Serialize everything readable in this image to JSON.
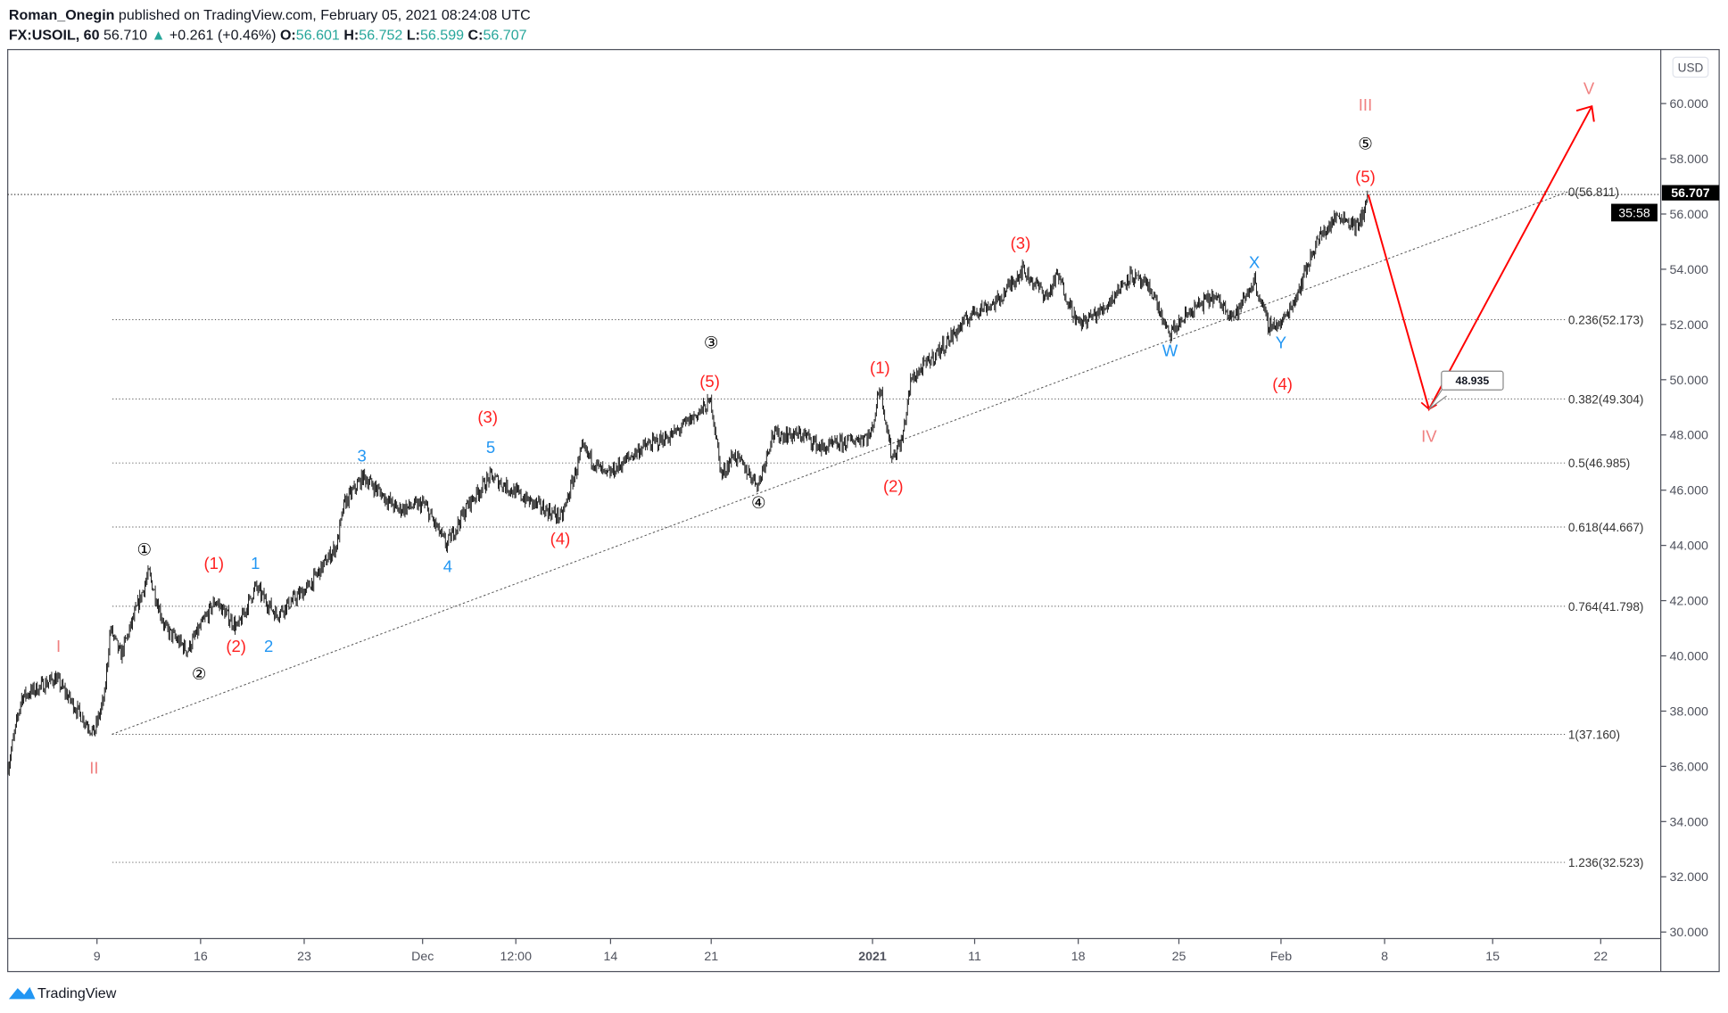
{
  "header": {
    "author": "Roman_Onegin",
    "published": " published on TradingView.com, February 05, 2021 08:24:08 UTC",
    "symbol": "FX:USOIL, 60",
    "last": "56.710",
    "change": "+0.261 (+0.46%)",
    "o_label": "O:",
    "o": "56.601",
    "h_label": "H:",
    "h": "56.752",
    "l_label": "L:",
    "l": "56.599",
    "c_label": "C:",
    "c": "56.707"
  },
  "currency": "USD",
  "price_tag": "56.707",
  "countdown": "35:58",
  "target_tag": "48.935",
  "footer_logo": "TradingView",
  "colors": {
    "up": "#26a69a",
    "wave_primary": "#f08080",
    "wave_red": "#ff2020",
    "wave_blue": "#2196f3",
    "arrow": "#ff0000"
  },
  "chart_data": {
    "type": "candlestick",
    "symbol": "FX:USOIL",
    "interval": "60",
    "ylim": [
      30,
      60.5
    ],
    "y_ticks": [
      "30.000",
      "32.000",
      "34.000",
      "36.000",
      "38.000",
      "40.000",
      "42.000",
      "44.000",
      "46.000",
      "48.000",
      "50.000",
      "52.000",
      "54.000",
      "56.000",
      "58.000",
      "60.000"
    ],
    "x_ticks": [
      {
        "label": "9",
        "day": 0
      },
      {
        "label": "16",
        "day": 7
      },
      {
        "label": "23",
        "day": 14
      },
      {
        "label": "Dec",
        "day": 22
      },
      {
        "label": "12:00",
        "day": 28.3
      },
      {
        "label": "14",
        "day": 34.7
      },
      {
        "label": "21",
        "day": 41.5
      },
      {
        "label": "2021",
        "day": 52.4,
        "bold": true
      },
      {
        "label": "11",
        "day": 59.3
      },
      {
        "label": "18",
        "day": 66.3
      },
      {
        "label": "25",
        "day": 73.1
      },
      {
        "label": "Feb",
        "day": 80
      },
      {
        "label": "8",
        "day": 87
      },
      {
        "label": "15",
        "day": 94.3
      },
      {
        "label": "22",
        "day": 101.6
      }
    ],
    "price_path": [
      [
        -6,
        36
      ],
      [
        -5.1,
        38.5
      ],
      [
        -2.8,
        39.2
      ],
      [
        -1.3,
        38
      ],
      [
        -0.2,
        37.2
      ],
      [
        0.5,
        38.5
      ],
      [
        0.9,
        41
      ],
      [
        1.6,
        40
      ],
      [
        3.5,
        43
      ],
      [
        4.6,
        41
      ],
      [
        6.1,
        40.2
      ],
      [
        8,
        42
      ],
      [
        9.5,
        41
      ],
      [
        10.7,
        42.5
      ],
      [
        12.1,
        41.5
      ],
      [
        14.3,
        42.5
      ],
      [
        16.2,
        44
      ],
      [
        16.7,
        45.5
      ],
      [
        18,
        46.5
      ],
      [
        20.3,
        45.3
      ],
      [
        22.1,
        45.5
      ],
      [
        23.6,
        44
      ],
      [
        25.1,
        45.5
      ],
      [
        26.6,
        46.5
      ],
      [
        29.2,
        45.6
      ],
      [
        31.4,
        45
      ],
      [
        32.8,
        47.5
      ],
      [
        34.4,
        46.5
      ],
      [
        36.7,
        47.5
      ],
      [
        38.9,
        48
      ],
      [
        41.5,
        49.2
      ],
      [
        42.2,
        46.5
      ],
      [
        43,
        47.3
      ],
      [
        44.7,
        46.2
      ],
      [
        45.6,
        48
      ],
      [
        47.8,
        48
      ],
      [
        49,
        47.5
      ],
      [
        52.3,
        48
      ],
      [
        52.9,
        49.8
      ],
      [
        53.7,
        47.2
      ],
      [
        54.4,
        47.8
      ],
      [
        55,
        50
      ],
      [
        56.8,
        51
      ],
      [
        59.3,
        52.5
      ],
      [
        60.8,
        52.8
      ],
      [
        62.5,
        54
      ],
      [
        64.2,
        53
      ],
      [
        64.9,
        53.8
      ],
      [
        66.3,
        52
      ],
      [
        67.9,
        52.5
      ],
      [
        69.8,
        53.8
      ],
      [
        71.3,
        53.2
      ],
      [
        72.4,
        51.6
      ],
      [
        73.9,
        52.5
      ],
      [
        75.4,
        53
      ],
      [
        76.9,
        52.3
      ],
      [
        78.2,
        53.6
      ],
      [
        79.1,
        52
      ],
      [
        80,
        52
      ],
      [
        81,
        53
      ],
      [
        82.4,
        55
      ],
      [
        83.9,
        56
      ],
      [
        85.2,
        55.5
      ],
      [
        85.9,
        56.7
      ]
    ],
    "fib_levels": [
      {
        "label": "0(56.811)",
        "price": 56.811
      },
      {
        "label": "0.236(52.173)",
        "price": 52.173
      },
      {
        "label": "0.382(49.304)",
        "price": 49.304
      },
      {
        "label": "0.5(46.985)",
        "price": 46.985
      },
      {
        "label": "0.618(44.667)",
        "price": 44.667
      },
      {
        "label": "0.764(41.798)",
        "price": 41.798
      },
      {
        "label": "1(37.160)",
        "price": 37.16
      },
      {
        "label": "1.236(32.523)",
        "price": 32.523
      }
    ],
    "trendline": [
      [
        1,
        37.16
      ],
      [
        99.4,
        56.811
      ]
    ],
    "projection": [
      [
        85.9,
        56.7
      ],
      [
        90,
        48.935
      ],
      [
        101,
        59.9
      ]
    ],
    "wave_labels": [
      {
        "t": "I",
        "day": -2.6,
        "p": 40.3,
        "c": "p"
      },
      {
        "t": "II",
        "day": -0.2,
        "p": 35.9,
        "c": "p"
      },
      {
        "t": "III",
        "day": 85.7,
        "p": 59.9,
        "c": "p"
      },
      {
        "t": "IV",
        "day": 90,
        "p": 47.9,
        "c": "p"
      },
      {
        "t": "V",
        "day": 100.8,
        "p": 60.5,
        "c": "p"
      },
      {
        "t": "①",
        "day": 3.2,
        "p": 43.8,
        "c": "k"
      },
      {
        "t": "②",
        "day": 6.9,
        "p": 39.3,
        "c": "k"
      },
      {
        "t": "③",
        "day": 41.5,
        "p": 51.3,
        "c": "k"
      },
      {
        "t": "④",
        "day": 44.7,
        "p": 45.5,
        "c": "k"
      },
      {
        "t": "⑤",
        "day": 85.7,
        "p": 58.5,
        "c": "k"
      },
      {
        "t": "(1)",
        "day": 7.9,
        "p": 43.3,
        "c": "r"
      },
      {
        "t": "(2)",
        "day": 9.4,
        "p": 40.3,
        "c": "r"
      },
      {
        "t": "(3)",
        "day": 26.4,
        "p": 48.6,
        "c": "r"
      },
      {
        "t": "(4)",
        "day": 31.3,
        "p": 44.2,
        "c": "r"
      },
      {
        "t": "(5)",
        "day": 41.4,
        "p": 49.9,
        "c": "r"
      },
      {
        "t": "(1)",
        "day": 52.9,
        "p": 50.4,
        "c": "r"
      },
      {
        "t": "(2)",
        "day": 53.8,
        "p": 46.1,
        "c": "r"
      },
      {
        "t": "(3)",
        "day": 62.4,
        "p": 54.9,
        "c": "r"
      },
      {
        "t": "(4)",
        "day": 80.1,
        "p": 49.8,
        "c": "r"
      },
      {
        "t": "(5)",
        "day": 85.7,
        "p": 57.3,
        "c": "r"
      },
      {
        "t": "1",
        "day": 10.7,
        "p": 43.3,
        "c": "b"
      },
      {
        "t": "2",
        "day": 11.6,
        "p": 40.3,
        "c": "b"
      },
      {
        "t": "3",
        "day": 17.9,
        "p": 47.2,
        "c": "b"
      },
      {
        "t": "4",
        "day": 23.7,
        "p": 43.2,
        "c": "b"
      },
      {
        "t": "5",
        "day": 26.6,
        "p": 47.5,
        "c": "b"
      },
      {
        "t": "W",
        "day": 72.5,
        "p": 51.0,
        "c": "b"
      },
      {
        "t": "X",
        "day": 78.2,
        "p": 54.2,
        "c": "b"
      },
      {
        "t": "Y",
        "day": 80,
        "p": 51.3,
        "c": "b"
      }
    ]
  }
}
